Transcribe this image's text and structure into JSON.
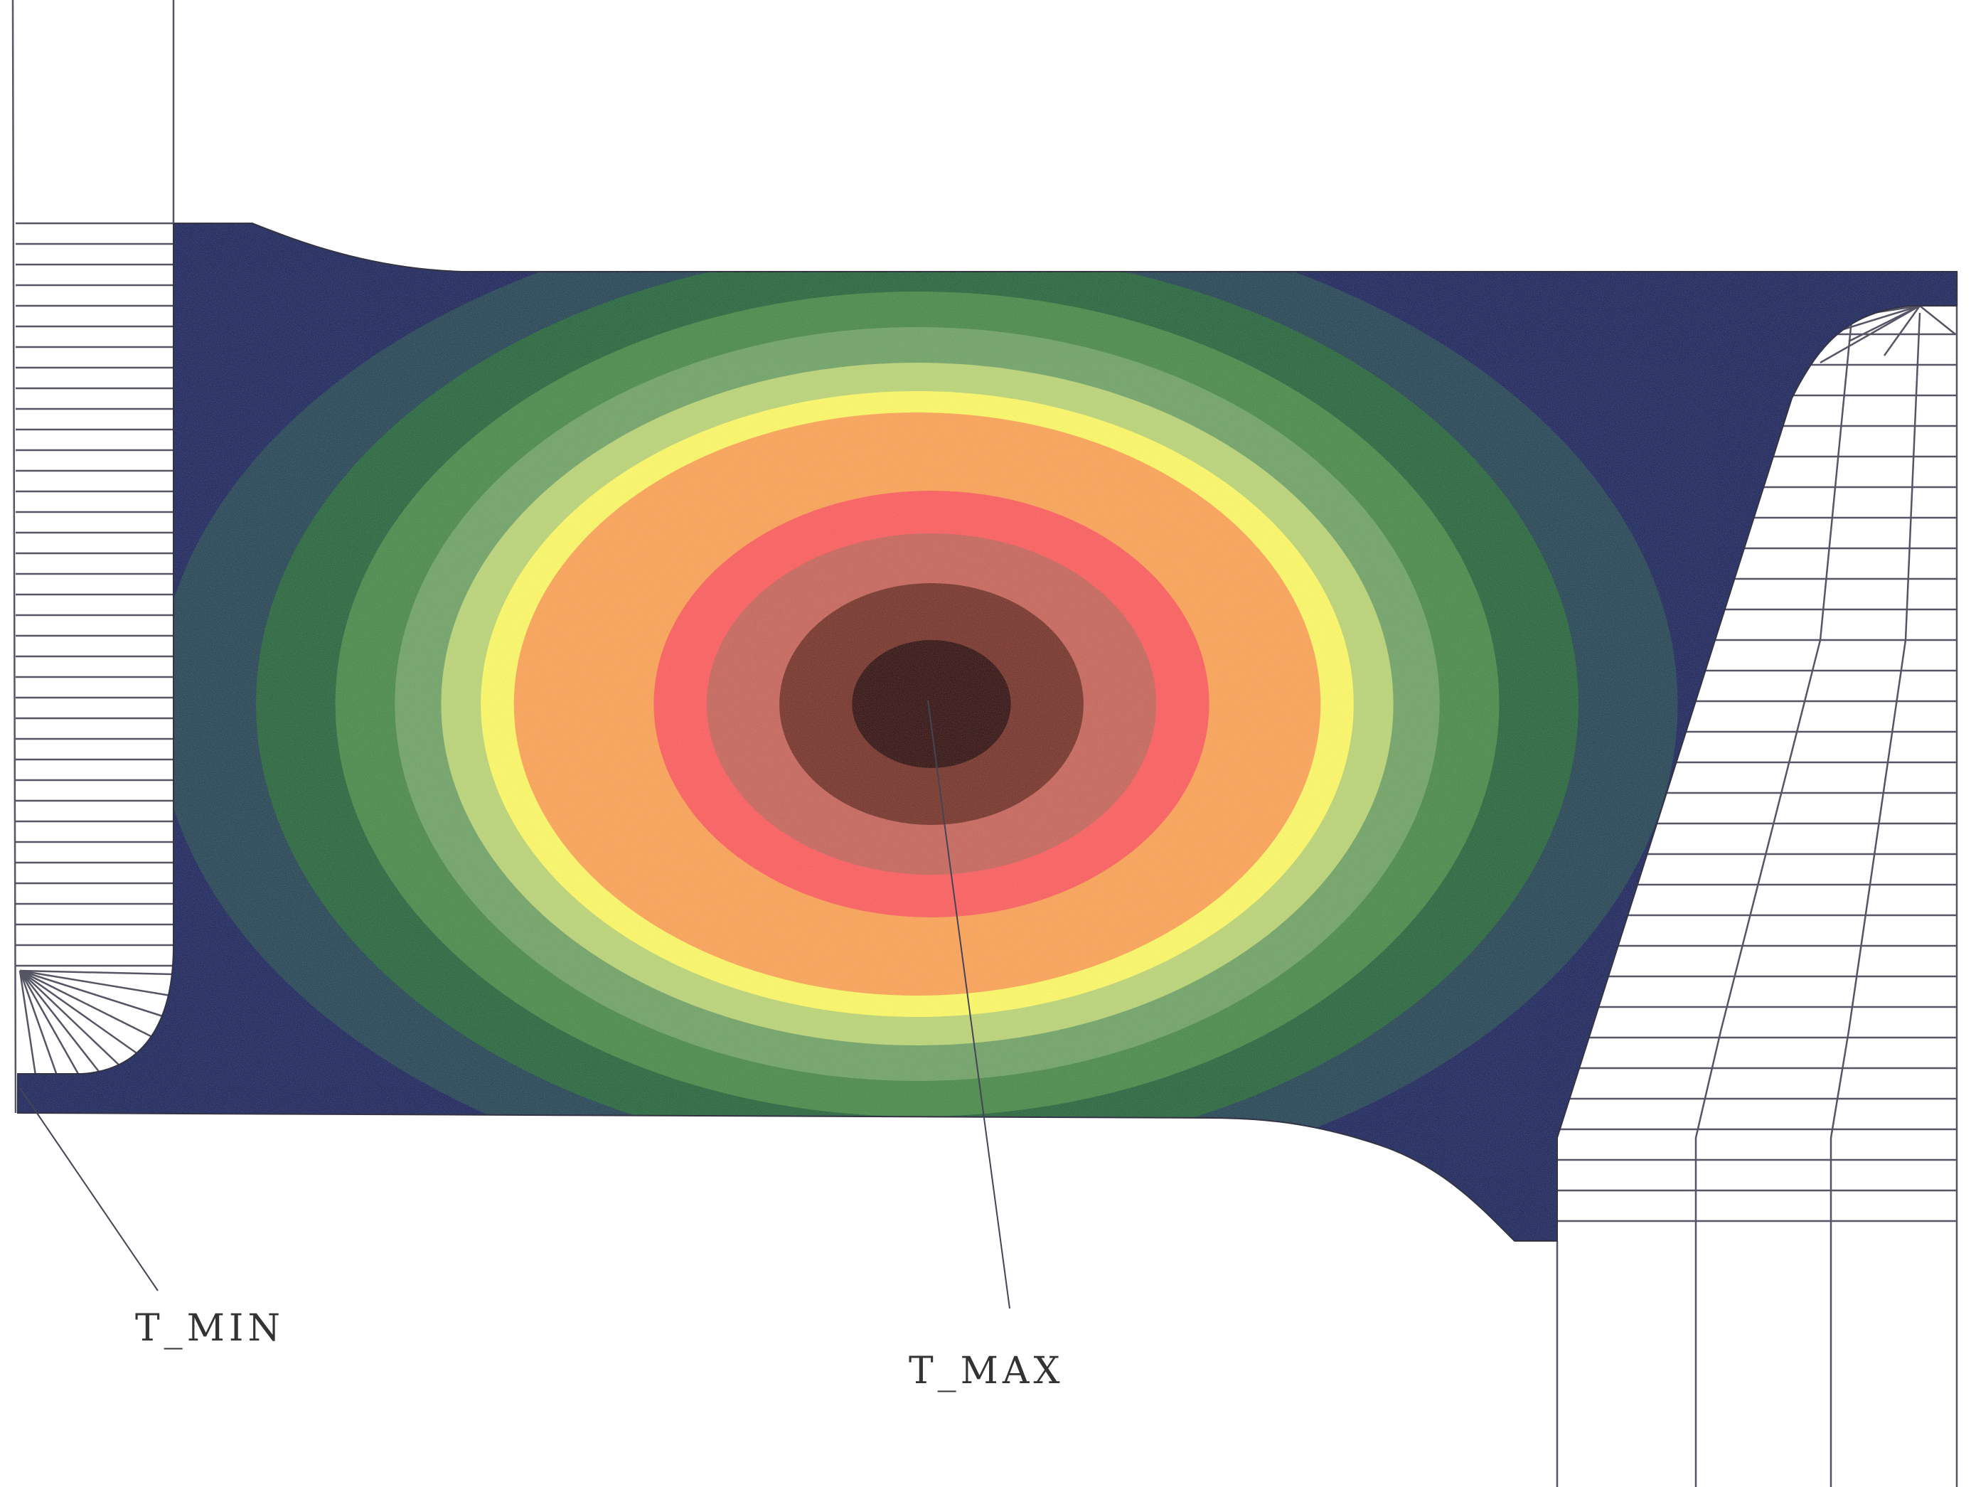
{
  "diagram": {
    "labels": {
      "t_min": "T_MIN",
      "t_max": "T_MAX"
    },
    "colors": {
      "background": "#ffffff",
      "mesh_line": "#555566",
      "leader_line": "#444455",
      "contour_bands": [
        "#262e62",
        "#2d4b5a",
        "#2f6b43",
        "#4f8d4e",
        "#74a56a",
        "#bcd57a",
        "#fcf86a",
        "#fba55a",
        "#fc6262",
        "#c86a60",
        "#7a3a30",
        "#3a1a18"
      ]
    }
  }
}
